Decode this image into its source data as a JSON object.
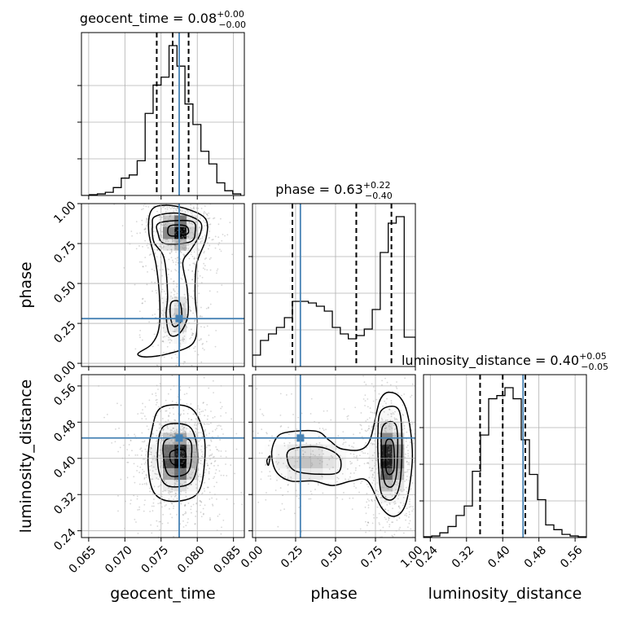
{
  "colors": {
    "truth": "#4682b4",
    "contour": "#000000",
    "grid": "#b0b0b0"
  },
  "chart_data": {
    "type": "corner",
    "parameters": [
      "geocent_time",
      "phase",
      "luminosity_distance"
    ],
    "truths": {
      "geocent_time": 0.0775,
      "phase": 0.28,
      "luminosity_distance": 0.445
    },
    "ranges": {
      "geocent_time": [
        0.064,
        0.0865
      ],
      "phase": [
        -0.02,
        1.0
      ],
      "luminosity_distance": [
        0.225,
        0.585
      ]
    },
    "ticks": {
      "geocent_time": {
        "values": [
          0.065,
          0.07,
          0.075,
          0.08,
          0.085
        ],
        "labels": [
          "0.065",
          "0.070",
          "0.075",
          "0.080",
          "0.085"
        ]
      },
      "phase": {
        "values": [
          0.0,
          0.25,
          0.5,
          0.75,
          1.0
        ],
        "labels": [
          "0.00",
          "0.25",
          "0.50",
          "0.75",
          "1.00"
        ]
      },
      "luminosity_distance": {
        "values": [
          0.24,
          0.32,
          0.4,
          0.48,
          0.56
        ],
        "labels": [
          "0.24",
          "0.32",
          "0.40",
          "0.48",
          "0.56"
        ]
      }
    },
    "titles": {
      "geocent_time": {
        "text": "geocent_time = 0.08",
        "sup": "+0.00",
        "sub": "−0.00"
      },
      "phase": {
        "text": "phase = 0.63",
        "sup": "+0.22",
        "sub": "−0.40"
      },
      "luminosity_distance": {
        "text": "luminosity_distance = 0.40",
        "sup": "+0.05",
        "sub": "−0.05"
      }
    },
    "quantiles": {
      "geocent_time": [
        0.0744,
        0.0766,
        0.0788
      ],
      "phase": [
        0.23,
        0.63,
        0.85
      ],
      "luminosity_distance": [
        0.35,
        0.4,
        0.45
      ]
    },
    "histograms": {
      "geocent_time": {
        "edges": [
          0.064,
          0.0651,
          0.0662,
          0.0673,
          0.0684,
          0.0695,
          0.0706,
          0.0717,
          0.0728,
          0.0739,
          0.075,
          0.0761,
          0.0772,
          0.0783,
          0.0794,
          0.0805,
          0.0816,
          0.0827,
          0.0838,
          0.0849,
          0.086
        ],
        "counts": [
          0,
          0.005,
          0.01,
          0.02,
          0.05,
          0.11,
          0.13,
          0.22,
          0.52,
          0.7,
          0.75,
          0.95,
          0.82,
          0.58,
          0.45,
          0.28,
          0.2,
          0.08,
          0.03,
          0.01
        ]
      },
      "phase": {
        "edges": [
          -0.02,
          0.03,
          0.08,
          0.13,
          0.18,
          0.23,
          0.28,
          0.33,
          0.38,
          0.43,
          0.48,
          0.53,
          0.58,
          0.63,
          0.68,
          0.73,
          0.78,
          0.83,
          0.88,
          0.93,
          1.0
        ],
        "counts": [
          0.07,
          0.16,
          0.2,
          0.24,
          0.3,
          0.4,
          0.4,
          0.39,
          0.37,
          0.34,
          0.24,
          0.2,
          0.17,
          0.19,
          0.23,
          0.35,
          0.7,
          0.88,
          0.92,
          0.18
        ]
      },
      "luminosity_distance": {
        "edges": [
          0.225,
          0.243,
          0.261,
          0.279,
          0.297,
          0.315,
          0.333,
          0.351,
          0.369,
          0.387,
          0.405,
          0.423,
          0.441,
          0.459,
          0.477,
          0.495,
          0.513,
          0.531,
          0.549,
          0.567,
          0.585
        ],
        "counts": [
          0.005,
          0.01,
          0.03,
          0.07,
          0.14,
          0.2,
          0.42,
          0.65,
          0.88,
          0.9,
          0.95,
          0.88,
          0.62,
          0.4,
          0.24,
          0.08,
          0.05,
          0.02,
          0.01,
          0.005
        ]
      }
    },
    "contours": {
      "phase|geocent_time": [
        [
          [
            0.0762,
            0.86
          ],
          [
            0.0784,
            0.86
          ],
          [
            0.0786,
            0.81
          ],
          [
            0.0762,
            0.8
          ]
        ],
        [
          [
            0.0748,
            0.88
          ],
          [
            0.0792,
            0.89
          ],
          [
            0.0797,
            0.82
          ],
          [
            0.079,
            0.76
          ],
          [
            0.0755,
            0.75
          ],
          [
            0.0746,
            0.81
          ]
        ],
        [
          [
            0.0742,
            0.92
          ],
          [
            0.0773,
            0.94
          ],
          [
            0.0803,
            0.89
          ],
          [
            0.0804,
            0.81
          ],
          [
            0.0791,
            0.71
          ],
          [
            0.078,
            0.63
          ],
          [
            0.0786,
            0.47
          ],
          [
            0.0787,
            0.3
          ],
          [
            0.0776,
            0.19
          ],
          [
            0.0762,
            0.18
          ],
          [
            0.0757,
            0.3
          ],
          [
            0.0759,
            0.43
          ],
          [
            0.0754,
            0.66
          ],
          [
            0.074,
            0.76
          ],
          [
            0.0738,
            0.86
          ]
        ],
        [
          [
            0.0737,
            0.96
          ],
          [
            0.0758,
            0.99
          ],
          [
            0.079,
            0.96
          ],
          [
            0.0812,
            0.9
          ],
          [
            0.0812,
            0.78
          ],
          [
            0.0799,
            0.62
          ],
          [
            0.0797,
            0.42
          ],
          [
            0.08,
            0.25
          ],
          [
            0.0793,
            0.12
          ],
          [
            0.076,
            0.06
          ],
          [
            0.073,
            0.04
          ],
          [
            0.0718,
            0.06
          ],
          [
            0.0737,
            0.12
          ],
          [
            0.0747,
            0.22
          ],
          [
            0.0748,
            0.4
          ],
          [
            0.0743,
            0.62
          ],
          [
            0.0733,
            0.82
          ]
        ],
        [
          [
            0.0764,
            0.38
          ],
          [
            0.0776,
            0.38
          ],
          [
            0.0778,
            0.27
          ],
          [
            0.0768,
            0.23
          ],
          [
            0.0763,
            0.29
          ]
        ]
      ],
      "luminosity_distance|geocent_time": [
        [
          [
            0.0764,
            0.415
          ],
          [
            0.0782,
            0.418
          ],
          [
            0.0783,
            0.39
          ],
          [
            0.077,
            0.385
          ],
          [
            0.0763,
            0.395
          ]
        ],
        [
          [
            0.0756,
            0.44
          ],
          [
            0.0788,
            0.442
          ],
          [
            0.0792,
            0.405
          ],
          [
            0.0786,
            0.368
          ],
          [
            0.0762,
            0.362
          ],
          [
            0.0754,
            0.395
          ]
        ],
        [
          [
            0.0753,
            0.47
          ],
          [
            0.0786,
            0.473
          ],
          [
            0.0798,
            0.44
          ],
          [
            0.08,
            0.385
          ],
          [
            0.079,
            0.345
          ],
          [
            0.0762,
            0.338
          ],
          [
            0.0749,
            0.36
          ],
          [
            0.0745,
            0.41
          ]
        ],
        [
          [
            0.075,
            0.512
          ],
          [
            0.079,
            0.512
          ],
          [
            0.0808,
            0.46
          ],
          [
            0.081,
            0.39
          ],
          [
            0.08,
            0.322
          ],
          [
            0.0765,
            0.305
          ],
          [
            0.074,
            0.325
          ],
          [
            0.0732,
            0.39
          ],
          [
            0.0737,
            0.46
          ]
        ]
      ],
      "luminosity_distance|phase": [
        [
          [
            0.815,
            0.435
          ],
          [
            0.86,
            0.435
          ],
          [
            0.865,
            0.375
          ],
          [
            0.82,
            0.37
          ]
        ],
        [
          [
            0.795,
            0.47
          ],
          [
            0.88,
            0.472
          ],
          [
            0.885,
            0.38
          ],
          [
            0.86,
            0.34
          ],
          [
            0.81,
            0.345
          ],
          [
            0.79,
            0.4
          ]
        ],
        [
          [
            0.785,
            0.505
          ],
          [
            0.89,
            0.51
          ],
          [
            0.915,
            0.45
          ],
          [
            0.905,
            0.35
          ],
          [
            0.86,
            0.31
          ],
          [
            0.79,
            0.32
          ],
          [
            0.77,
            0.38
          ],
          [
            0.765,
            0.45
          ]
        ],
        [
          [
            0.2,
            0.458
          ],
          [
            0.38,
            0.46
          ],
          [
            0.46,
            0.44
          ],
          [
            0.55,
            0.42
          ],
          [
            0.7,
            0.43
          ],
          [
            0.78,
            0.53
          ],
          [
            0.86,
            0.545
          ],
          [
            0.93,
            0.52
          ],
          [
            0.97,
            0.46
          ],
          [
            0.98,
            0.39
          ],
          [
            0.94,
            0.3
          ],
          [
            0.87,
            0.272
          ],
          [
            0.79,
            0.29
          ],
          [
            0.7,
            0.35
          ],
          [
            0.6,
            0.35
          ],
          [
            0.48,
            0.34
          ],
          [
            0.36,
            0.35
          ],
          [
            0.22,
            0.35
          ],
          [
            0.13,
            0.37
          ],
          [
            0.1,
            0.41
          ],
          [
            0.13,
            0.445
          ]
        ],
        [
          [
            0.22,
            0.42
          ],
          [
            0.4,
            0.425
          ],
          [
            0.52,
            0.405
          ],
          [
            0.52,
            0.37
          ],
          [
            0.4,
            0.365
          ],
          [
            0.25,
            0.372
          ],
          [
            0.2,
            0.395
          ]
        ],
        [
          [
            0.07,
            0.395
          ],
          [
            0.09,
            0.405
          ],
          [
            0.08,
            0.385
          ]
        ]
      ]
    },
    "density_blobs": {
      "phase|geocent_time": [
        {
          "cx": 0.0774,
          "cy": 0.83,
          "sx": 0.0014,
          "sy": 0.07,
          "w": 1.0
        },
        {
          "cx": 0.0772,
          "cy": 0.3,
          "sx": 0.0012,
          "sy": 0.1,
          "w": 0.45
        }
      ],
      "luminosity_distance|geocent_time": [
        {
          "cx": 0.0773,
          "cy": 0.4,
          "sx": 0.0017,
          "sy": 0.04,
          "w": 1.0
        }
      ],
      "luminosity_distance|phase": [
        {
          "cx": 0.84,
          "cy": 0.4,
          "sx": 0.05,
          "sy": 0.05,
          "w": 1.0
        },
        {
          "cx": 0.33,
          "cy": 0.395,
          "sx": 0.14,
          "sy": 0.03,
          "w": 0.45
        }
      ]
    },
    "grid": true
  }
}
